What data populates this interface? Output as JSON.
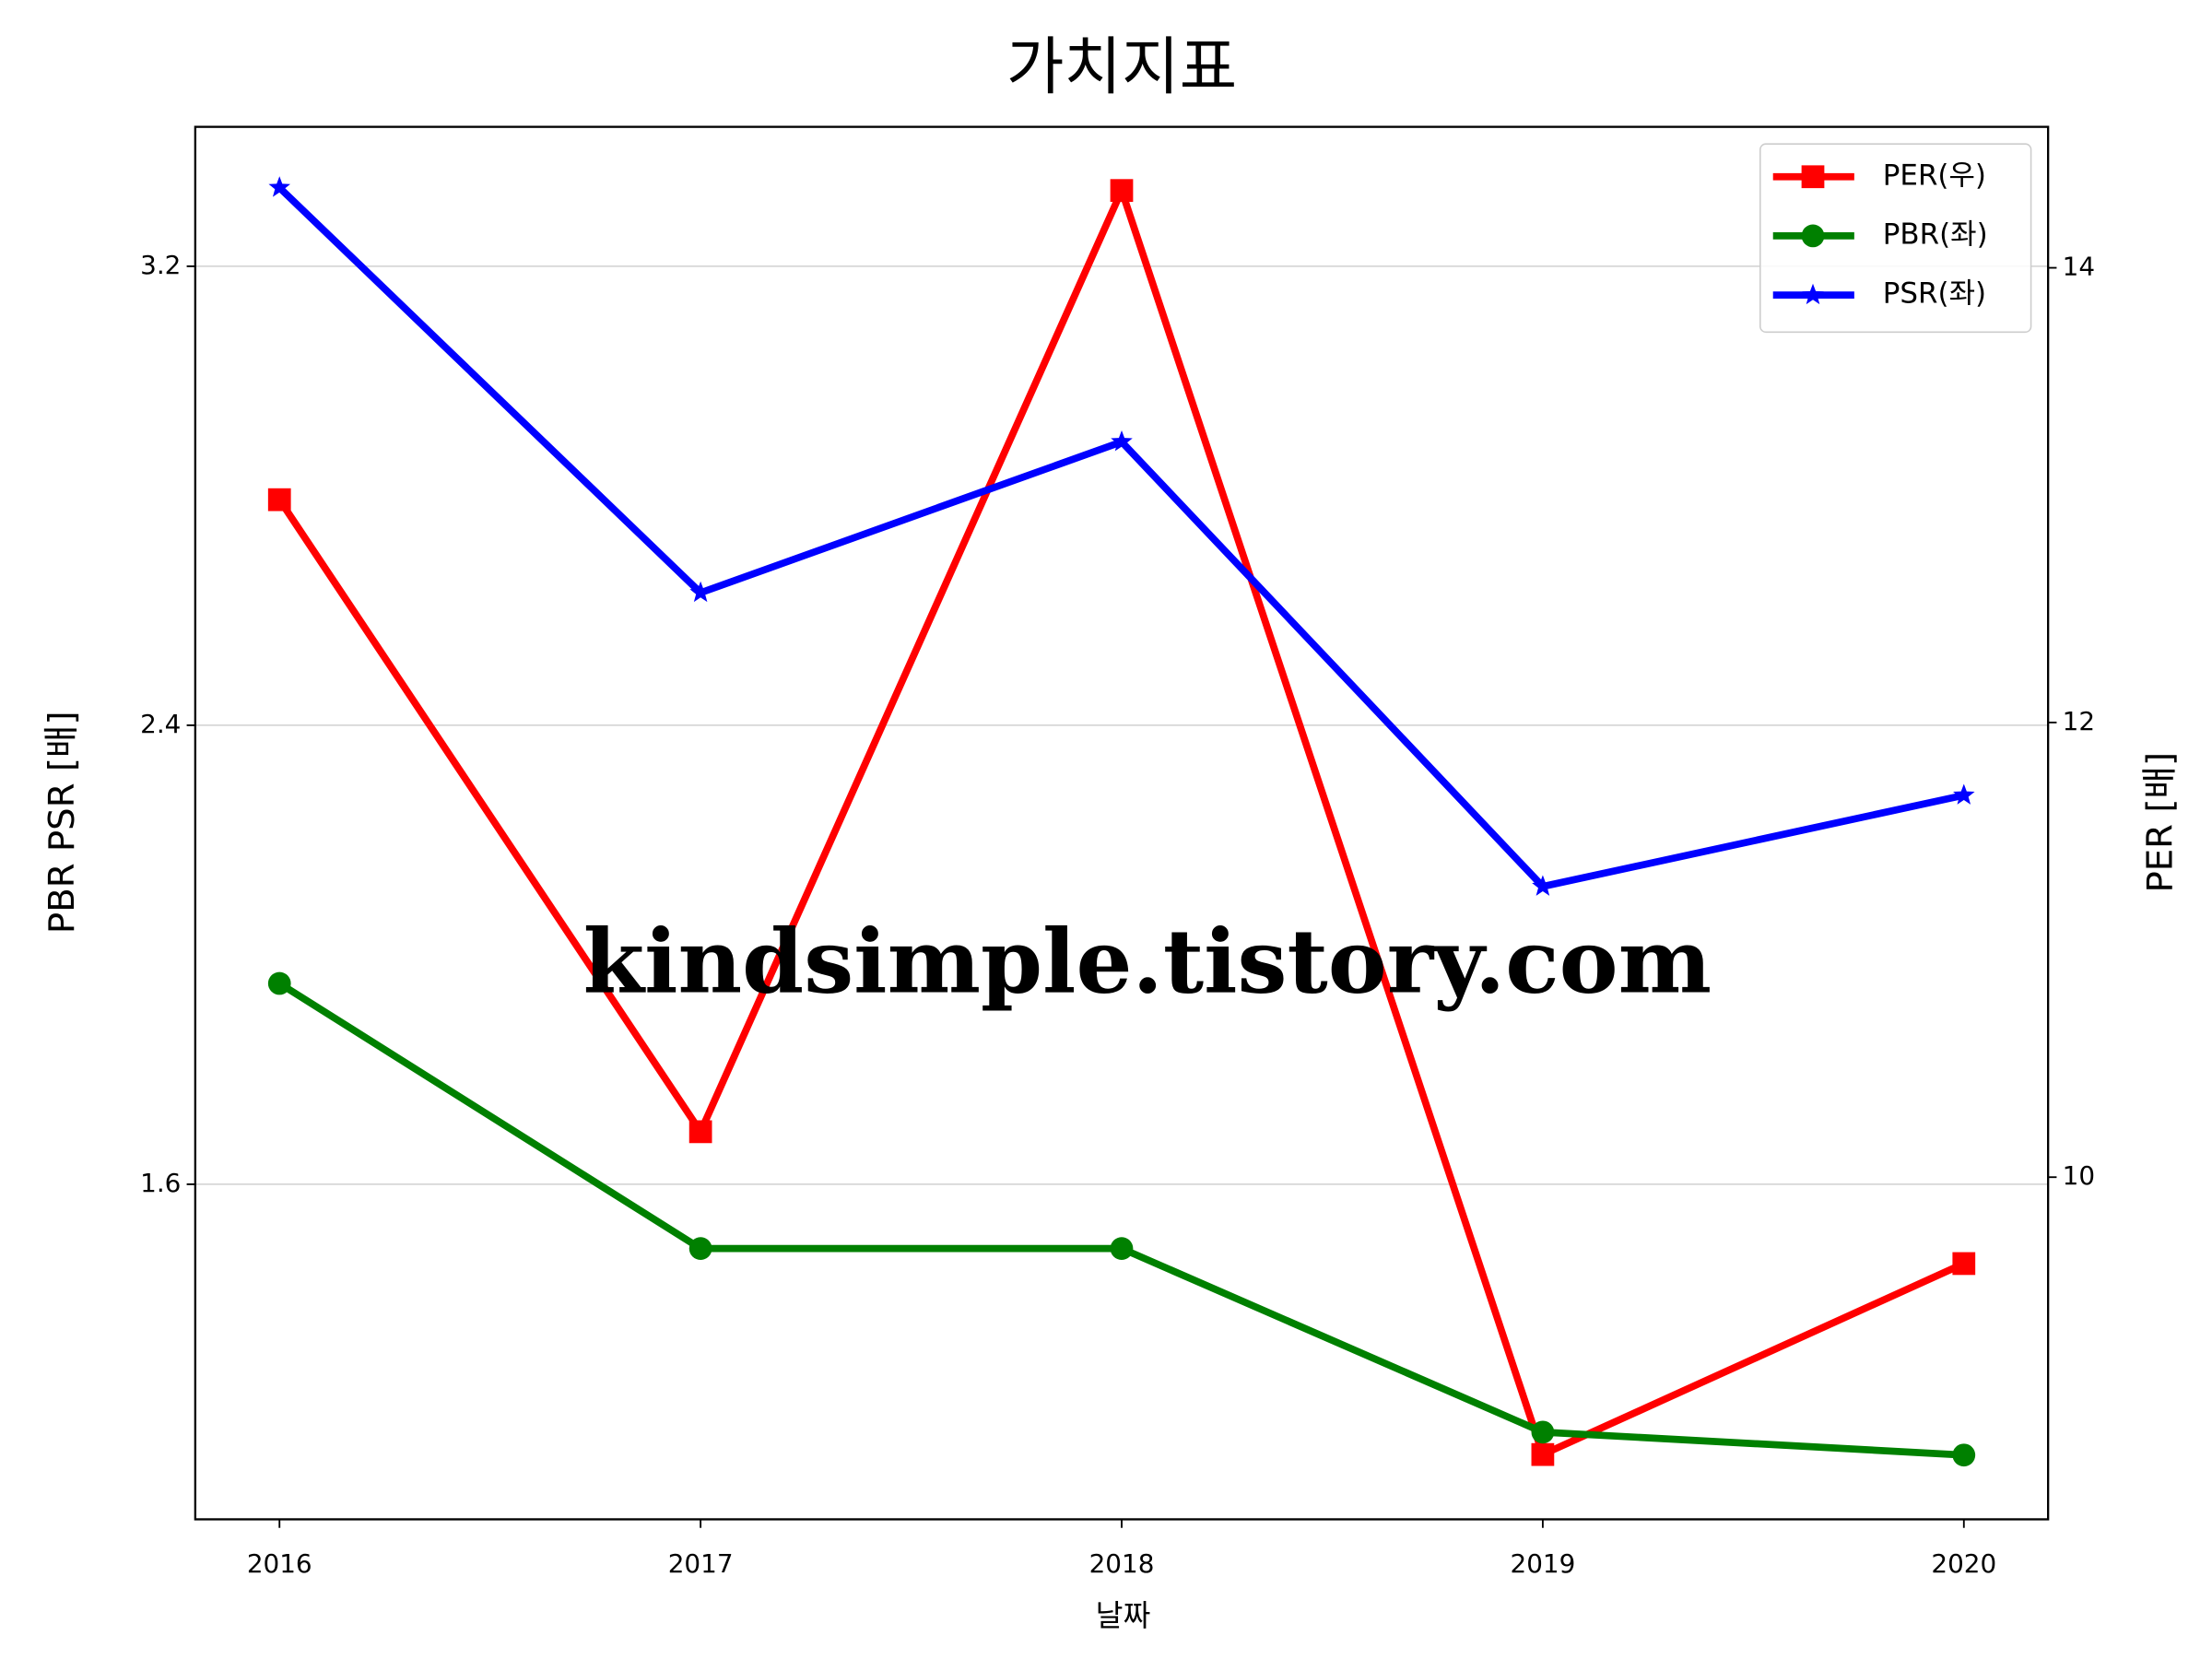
{
  "chart_data": {
    "type": "line",
    "title": "가치지표",
    "x_label": "날짜",
    "y_label": "PBR PSR [배]",
    "y2_label": "PER [배]",
    "watermark": "kindsimple.tistory.com",
    "x": [
      2016,
      2017,
      2018,
      2019,
      2020
    ],
    "xlim": [
      2015.8,
      2020.2
    ],
    "xticks": [
      2016,
      2017,
      2018,
      2019,
      2020
    ],
    "ylim": [
      1.016,
      3.443
    ],
    "yticks": [
      1.6,
      2.4,
      3.2
    ],
    "y2lim": [
      8.495,
      14.62
    ],
    "y2ticks": [
      10,
      12,
      14
    ],
    "grid": true,
    "legend": "upper right",
    "y_label_color": "#008000",
    "y2_label_color": "#ff0000",
    "series": [
      {
        "name": "PER(우)",
        "color": "#ff0000",
        "marker": "square",
        "axis": "y2",
        "values": [
          12.98,
          10.2,
          14.34,
          8.78,
          9.62
        ]
      },
      {
        "name": "PBR(좌)",
        "color": "#008000",
        "marker": "circle",
        "values": [
          1.95,
          1.488,
          1.488,
          1.168,
          1.128
        ]
      },
      {
        "name": "PSR(좌)",
        "color": "#0000ff",
        "marker": "star",
        "values": [
          3.337,
          2.631,
          2.894,
          2.119,
          2.278
        ]
      }
    ]
  }
}
